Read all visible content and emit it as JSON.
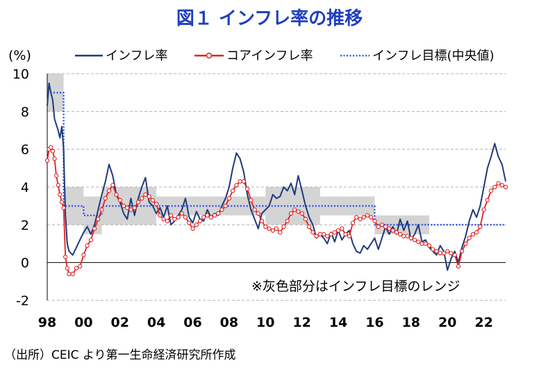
{
  "title": "図１ インフレ率の推移",
  "source": "（出所）CEIC より第一生命経済研究所作成",
  "chart_data": {
    "type": "line",
    "ylabel": "(%)",
    "ylim": [
      -2,
      10
    ],
    "yticks": [
      -2,
      0,
      2,
      4,
      6,
      8,
      10
    ],
    "xlim": [
      1998,
      2023.2
    ],
    "xticks": [
      {
        "value": 1998,
        "label": "98"
      },
      {
        "value": 2000,
        "label": "00"
      },
      {
        "value": 2002,
        "label": "02"
      },
      {
        "value": 2004,
        "label": "04"
      },
      {
        "value": 2006,
        "label": "06"
      },
      {
        "value": 2008,
        "label": "08"
      },
      {
        "value": 2010,
        "label": "10"
      },
      {
        "value": 2012,
        "label": "12"
      },
      {
        "value": 2014,
        "label": "14"
      },
      {
        "value": 2016,
        "label": "16"
      },
      {
        "value": 2018,
        "label": "18"
      },
      {
        "value": 2020,
        "label": "20"
      },
      {
        "value": 2022,
        "label": "22"
      }
    ],
    "grid": true,
    "legend": "top",
    "annotation": "※灰色部分はインフレ目標のレンジ",
    "colors": {
      "cpi": "#1f3a7a",
      "core": "#e02020",
      "target": "#3355ee",
      "band": "#d4d4d4"
    },
    "target_band": [
      {
        "x0": 1998.0,
        "x1": 1998.9,
        "lo": 8,
        "hi": 10
      },
      {
        "x0": 1998.9,
        "x1": 1999.0,
        "lo": 2,
        "hi": 4
      },
      {
        "x0": 1999.0,
        "x1": 2000.0,
        "lo": 2,
        "hi": 4
      },
      {
        "x0": 2000.0,
        "x1": 2001.0,
        "lo": 1.5,
        "hi": 3.5
      },
      {
        "x0": 2001.0,
        "x1": 2004.0,
        "lo": 2,
        "hi": 4
      },
      {
        "x0": 2004.0,
        "x1": 2010.0,
        "lo": 2.5,
        "hi": 3.5
      },
      {
        "x0": 2010.0,
        "x1": 2013.0,
        "lo": 2,
        "hi": 4
      },
      {
        "x0": 2013.0,
        "x1": 2016.0,
        "lo": 2.5,
        "hi": 3.5
      },
      {
        "x0": 2016.0,
        "x1": 2019.0,
        "lo": 1.5,
        "hi": 2.5
      }
    ],
    "series": [
      {
        "name": "インフレ率",
        "points": [
          [
            1998.0,
            8.3
          ],
          [
            1998.1,
            9.5
          ],
          [
            1998.2,
            9.0
          ],
          [
            1998.3,
            8.6
          ],
          [
            1998.4,
            7.6
          ],
          [
            1998.5,
            7.3
          ],
          [
            1998.6,
            7.0
          ],
          [
            1998.7,
            6.6
          ],
          [
            1998.8,
            7.2
          ],
          [
            1998.9,
            6.0
          ],
          [
            1999.0,
            2.5
          ],
          [
            1999.1,
            1.0
          ],
          [
            1999.2,
            0.6
          ],
          [
            1999.4,
            0.4
          ],
          [
            1999.6,
            0.8
          ],
          [
            1999.8,
            1.2
          ],
          [
            2000.0,
            1.6
          ],
          [
            2000.2,
            1.9
          ],
          [
            2000.4,
            1.5
          ],
          [
            2000.6,
            2.0
          ],
          [
            2000.8,
            2.8
          ],
          [
            2001.0,
            3.6
          ],
          [
            2001.2,
            4.3
          ],
          [
            2001.4,
            5.2
          ],
          [
            2001.6,
            4.6
          ],
          [
            2001.8,
            3.6
          ],
          [
            2002.0,
            3.2
          ],
          [
            2002.2,
            2.6
          ],
          [
            2002.4,
            2.3
          ],
          [
            2002.6,
            3.4
          ],
          [
            2002.8,
            2.5
          ],
          [
            2003.0,
            3.4
          ],
          [
            2003.2,
            4.0
          ],
          [
            2003.4,
            4.5
          ],
          [
            2003.6,
            3.2
          ],
          [
            2003.8,
            3.0
          ],
          [
            2004.0,
            2.6
          ],
          [
            2004.2,
            2.9
          ],
          [
            2004.4,
            2.4
          ],
          [
            2004.6,
            3.0
          ],
          [
            2004.8,
            2.0
          ],
          [
            2005.0,
            2.2
          ],
          [
            2005.2,
            2.5
          ],
          [
            2005.4,
            2.8
          ],
          [
            2005.6,
            3.4
          ],
          [
            2005.8,
            2.4
          ],
          [
            2006.0,
            2.1
          ],
          [
            2006.2,
            2.7
          ],
          [
            2006.4,
            2.3
          ],
          [
            2006.6,
            2.2
          ],
          [
            2006.8,
            2.8
          ],
          [
            2007.0,
            2.4
          ],
          [
            2007.2,
            2.6
          ],
          [
            2007.4,
            2.5
          ],
          [
            2007.6,
            3.0
          ],
          [
            2007.8,
            3.4
          ],
          [
            2008.0,
            4.0
          ],
          [
            2008.2,
            5.0
          ],
          [
            2008.4,
            5.8
          ],
          [
            2008.6,
            5.5
          ],
          [
            2008.8,
            4.8
          ],
          [
            2009.0,
            3.6
          ],
          [
            2009.2,
            2.8
          ],
          [
            2009.4,
            2.3
          ],
          [
            2009.6,
            1.8
          ],
          [
            2009.8,
            2.6
          ],
          [
            2010.0,
            2.8
          ],
          [
            2010.2,
            3.0
          ],
          [
            2010.4,
            3.6
          ],
          [
            2010.6,
            3.4
          ],
          [
            2010.8,
            3.5
          ],
          [
            2011.0,
            4.0
          ],
          [
            2011.2,
            3.8
          ],
          [
            2011.4,
            4.2
          ],
          [
            2011.6,
            3.6
          ],
          [
            2011.8,
            4.6
          ],
          [
            2012.0,
            3.8
          ],
          [
            2012.2,
            3.0
          ],
          [
            2012.4,
            2.4
          ],
          [
            2012.6,
            2.0
          ],
          [
            2012.8,
            1.3
          ],
          [
            2013.0,
            1.5
          ],
          [
            2013.2,
            1.3
          ],
          [
            2013.4,
            1.0
          ],
          [
            2013.6,
            1.6
          ],
          [
            2013.8,
            1.1
          ],
          [
            2014.0,
            1.7
          ],
          [
            2014.2,
            1.2
          ],
          [
            2014.4,
            1.5
          ],
          [
            2014.6,
            1.7
          ],
          [
            2014.8,
            1.0
          ],
          [
            2015.0,
            0.6
          ],
          [
            2015.2,
            0.5
          ],
          [
            2015.4,
            0.9
          ],
          [
            2015.6,
            0.7
          ],
          [
            2015.8,
            1.0
          ],
          [
            2016.0,
            1.3
          ],
          [
            2016.2,
            0.7
          ],
          [
            2016.4,
            1.3
          ],
          [
            2016.6,
            1.9
          ],
          [
            2016.8,
            1.5
          ],
          [
            2017.0,
            1.9
          ],
          [
            2017.2,
            1.5
          ],
          [
            2017.4,
            2.3
          ],
          [
            2017.6,
            1.7
          ],
          [
            2017.8,
            2.2
          ],
          [
            2018.0,
            1.2
          ],
          [
            2018.2,
            1.5
          ],
          [
            2018.4,
            2.0
          ],
          [
            2018.6,
            1.1
          ],
          [
            2018.8,
            1.2
          ],
          [
            2019.0,
            0.8
          ],
          [
            2019.2,
            0.6
          ],
          [
            2019.4,
            0.4
          ],
          [
            2019.6,
            0.9
          ],
          [
            2019.8,
            0.6
          ],
          [
            2020.0,
            -0.4
          ],
          [
            2020.2,
            0.2
          ],
          [
            2020.4,
            0.6
          ],
          [
            2020.6,
            0.0
          ],
          [
            2020.8,
            0.8
          ],
          [
            2021.0,
            1.4
          ],
          [
            2021.2,
            2.2
          ],
          [
            2021.4,
            2.8
          ],
          [
            2021.6,
            2.4
          ],
          [
            2021.8,
            3.0
          ],
          [
            2022.0,
            4.0
          ],
          [
            2022.2,
            5.0
          ],
          [
            2022.4,
            5.6
          ],
          [
            2022.6,
            6.3
          ],
          [
            2022.8,
            5.6
          ],
          [
            2023.0,
            5.2
          ],
          [
            2023.2,
            4.3
          ]
        ]
      },
      {
        "name": "コアインフレ率",
        "points": [
          [
            1998.0,
            5.4
          ],
          [
            1998.1,
            6.0
          ],
          [
            1998.2,
            6.1
          ],
          [
            1998.3,
            5.9
          ],
          [
            1998.4,
            5.5
          ],
          [
            1998.5,
            4.6
          ],
          [
            1998.6,
            4.1
          ],
          [
            1998.7,
            3.6
          ],
          [
            1998.8,
            3.2
          ],
          [
            1998.9,
            2.9
          ],
          [
            1999.0,
            0.3
          ],
          [
            1999.1,
            -0.3
          ],
          [
            1999.2,
            -0.6
          ],
          [
            1999.4,
            -0.6
          ],
          [
            1999.6,
            -0.3
          ],
          [
            1999.8,
            -0.2
          ],
          [
            2000.0,
            0.4
          ],
          [
            2000.2,
            0.9
          ],
          [
            2000.4,
            1.2
          ],
          [
            2000.6,
            1.8
          ],
          [
            2000.8,
            2.3
          ],
          [
            2001.0,
            2.8
          ],
          [
            2001.2,
            3.4
          ],
          [
            2001.4,
            3.8
          ],
          [
            2001.6,
            4.1
          ],
          [
            2001.8,
            3.6
          ],
          [
            2002.0,
            3.3
          ],
          [
            2002.2,
            3.0
          ],
          [
            2002.4,
            2.9
          ],
          [
            2002.6,
            2.8
          ],
          [
            2002.8,
            2.9
          ],
          [
            2003.0,
            3.2
          ],
          [
            2003.2,
            3.4
          ],
          [
            2003.4,
            3.6
          ],
          [
            2003.6,
            3.5
          ],
          [
            2003.8,
            3.3
          ],
          [
            2004.0,
            3.1
          ],
          [
            2004.2,
            2.5
          ],
          [
            2004.4,
            2.3
          ],
          [
            2004.6,
            2.2
          ],
          [
            2004.8,
            2.5
          ],
          [
            2005.0,
            2.3
          ],
          [
            2005.2,
            2.4
          ],
          [
            2005.4,
            2.6
          ],
          [
            2005.6,
            2.4
          ],
          [
            2005.8,
            2.1
          ],
          [
            2006.0,
            1.8
          ],
          [
            2006.2,
            2.0
          ],
          [
            2006.4,
            2.2
          ],
          [
            2006.6,
            2.4
          ],
          [
            2006.8,
            2.5
          ],
          [
            2007.0,
            2.4
          ],
          [
            2007.2,
            2.5
          ],
          [
            2007.4,
            2.6
          ],
          [
            2007.6,
            2.8
          ],
          [
            2007.8,
            3.0
          ],
          [
            2008.0,
            3.4
          ],
          [
            2008.2,
            3.8
          ],
          [
            2008.4,
            4.1
          ],
          [
            2008.6,
            4.3
          ],
          [
            2008.8,
            4.3
          ],
          [
            2009.0,
            3.9
          ],
          [
            2009.2,
            3.3
          ],
          [
            2009.4,
            2.8
          ],
          [
            2009.6,
            2.6
          ],
          [
            2009.8,
            2.2
          ],
          [
            2010.0,
            1.9
          ],
          [
            2010.2,
            1.8
          ],
          [
            2010.4,
            1.7
          ],
          [
            2010.6,
            1.8
          ],
          [
            2010.8,
            1.6
          ],
          [
            2011.0,
            1.9
          ],
          [
            2011.2,
            2.2
          ],
          [
            2011.4,
            2.6
          ],
          [
            2011.6,
            2.8
          ],
          [
            2011.8,
            2.7
          ],
          [
            2012.0,
            2.6
          ],
          [
            2012.2,
            2.3
          ],
          [
            2012.4,
            1.9
          ],
          [
            2012.6,
            1.6
          ],
          [
            2012.8,
            1.4
          ],
          [
            2013.0,
            1.5
          ],
          [
            2013.2,
            1.5
          ],
          [
            2013.4,
            1.4
          ],
          [
            2013.6,
            1.5
          ],
          [
            2013.8,
            1.6
          ],
          [
            2014.0,
            1.7
          ],
          [
            2014.2,
            1.8
          ],
          [
            2014.4,
            1.5
          ],
          [
            2014.6,
            1.4
          ],
          [
            2014.8,
            2.1
          ],
          [
            2015.0,
            2.4
          ],
          [
            2015.2,
            2.3
          ],
          [
            2015.4,
            2.4
          ],
          [
            2015.6,
            2.5
          ],
          [
            2015.8,
            2.4
          ],
          [
            2016.0,
            2.2
          ],
          [
            2016.2,
            1.9
          ],
          [
            2016.4,
            2.0
          ],
          [
            2016.6,
            1.9
          ],
          [
            2016.8,
            1.8
          ],
          [
            2017.0,
            1.7
          ],
          [
            2017.2,
            1.6
          ],
          [
            2017.4,
            1.5
          ],
          [
            2017.6,
            1.4
          ],
          [
            2017.8,
            1.4
          ],
          [
            2018.0,
            1.3
          ],
          [
            2018.2,
            1.2
          ],
          [
            2018.4,
            1.1
          ],
          [
            2018.6,
            1.0
          ],
          [
            2018.8,
            1.0
          ],
          [
            2019.0,
            0.9
          ],
          [
            2019.2,
            0.7
          ],
          [
            2019.4,
            0.6
          ],
          [
            2019.6,
            0.5
          ],
          [
            2019.8,
            0.5
          ],
          [
            2020.0,
            0.6
          ],
          [
            2020.2,
            0.5
          ],
          [
            2020.4,
            0.4
          ],
          [
            2020.6,
            -0.2
          ],
          [
            2020.8,
            0.6
          ],
          [
            2021.0,
            1.0
          ],
          [
            2021.2,
            1.3
          ],
          [
            2021.4,
            1.5
          ],
          [
            2021.6,
            1.6
          ],
          [
            2021.8,
            1.9
          ],
          [
            2022.0,
            2.8
          ],
          [
            2022.2,
            3.3
          ],
          [
            2022.4,
            3.8
          ],
          [
            2022.6,
            4.0
          ],
          [
            2022.8,
            4.2
          ],
          [
            2023.0,
            4.1
          ],
          [
            2023.2,
            4.0
          ]
        ]
      },
      {
        "name": "インフレ目標(中央値)",
        "points": [
          [
            1998.0,
            9.0
          ],
          [
            1998.9,
            9.0
          ],
          [
            1998.9,
            3.0
          ],
          [
            2000.0,
            3.0
          ],
          [
            2000.0,
            2.5
          ],
          [
            2001.0,
            2.5
          ],
          [
            2001.0,
            3.0
          ],
          [
            2016.0,
            3.0
          ],
          [
            2016.0,
            2.0
          ],
          [
            2023.2,
            2.0
          ]
        ]
      }
    ]
  }
}
